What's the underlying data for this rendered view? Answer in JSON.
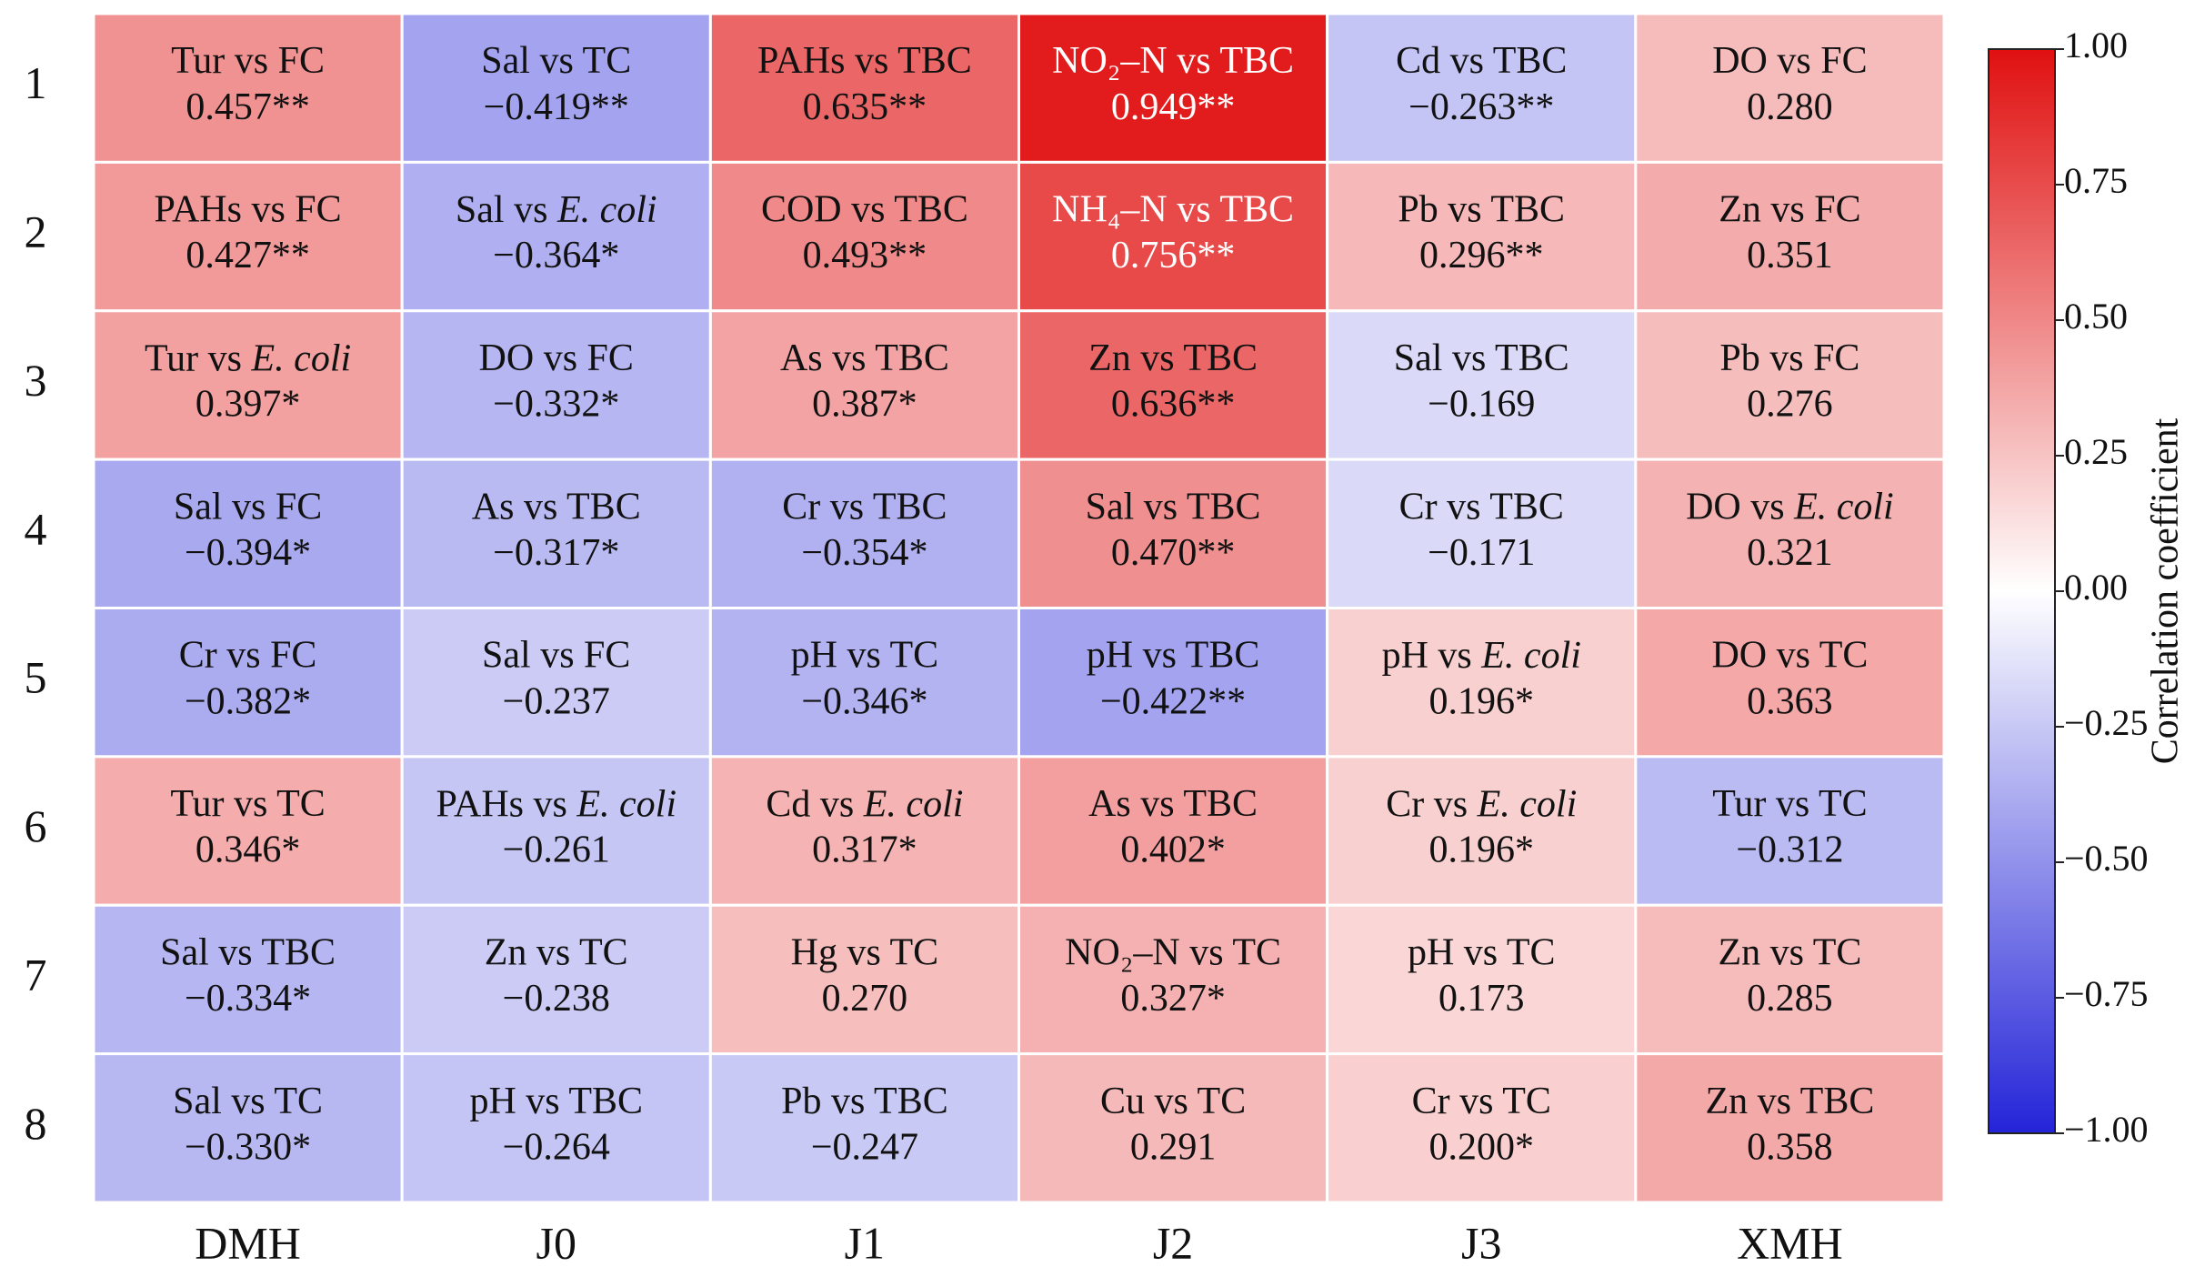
{
  "chart_data": {
    "type": "heatmap",
    "x": [
      "DMH",
      "J0",
      "J1",
      "J2",
      "J3",
      "XMH"
    ],
    "y": [
      "1",
      "2",
      "3",
      "4",
      "5",
      "6",
      "7",
      "8"
    ],
    "cell_labels": [
      [
        "Tur vs FC",
        "Sal vs TC",
        "PAHs vs TBC",
        "NO₂–N vs TBC",
        "Cd vs TBC",
        "DO vs FC"
      ],
      [
        "PAHs vs FC",
        "Sal vs E. coli",
        "COD vs TBC",
        "NH₄–N vs TBC",
        "Pb vs TBC",
        "Zn vs FC"
      ],
      [
        "Tur vs E. coli",
        "DO vs FC",
        "As vs TBC",
        "Zn vs TBC",
        "Sal vs TBC",
        "Pb vs FC"
      ],
      [
        "Sal vs FC",
        "As vs TBC",
        "Cr vs TBC",
        "Sal vs TBC",
        "Cr vs TBC",
        "DO vs E. coli"
      ],
      [
        "Cr vs FC",
        "Sal vs FC",
        "pH vs TC",
        "pH vs TBC",
        "pH vs E. coli",
        "DO vs TC"
      ],
      [
        "Tur vs TC",
        "PAHs vs E. coli",
        "Cd vs E. coli",
        "As vs TBC",
        "Cr vs E. coli",
        "Tur vs TC"
      ],
      [
        "Sal vs TBC",
        "Zn vs TC",
        "Hg vs TC",
        "NO₂–N vs TC",
        "pH vs TC",
        "Zn vs TC"
      ],
      [
        "Sal vs TC",
        "pH vs TBC",
        "Pb vs TBC",
        "Cu vs TC",
        "Cr vs TC",
        "Zn vs TBC"
      ]
    ],
    "values": [
      [
        0.457,
        -0.419,
        0.635,
        0.949,
        -0.263,
        0.28
      ],
      [
        0.427,
        -0.364,
        0.493,
        0.756,
        0.296,
        0.351
      ],
      [
        0.397,
        -0.332,
        0.387,
        0.636,
        -0.169,
        0.276
      ],
      [
        -0.394,
        -0.317,
        -0.354,
        0.47,
        -0.171,
        0.321
      ],
      [
        -0.382,
        -0.237,
        -0.346,
        -0.422,
        0.196,
        0.363
      ],
      [
        0.346,
        -0.261,
        0.317,
        0.402,
        0.196,
        -0.312
      ],
      [
        -0.334,
        -0.238,
        0.27,
        0.327,
        0.173,
        0.285
      ],
      [
        -0.33,
        -0.264,
        -0.247,
        0.291,
        0.2,
        0.358
      ]
    ],
    "value_labels": [
      [
        "0.457**",
        "−0.419**",
        "0.635**",
        "0.949**",
        "−0.263**",
        "0.280"
      ],
      [
        "0.427**",
        "−0.364*",
        "0.493**",
        "0.756**",
        "0.296**",
        "0.351"
      ],
      [
        "0.397*",
        "−0.332*",
        "0.387*",
        "0.636**",
        "−0.169",
        "0.276"
      ],
      [
        "−0.394*",
        "−0.317*",
        "−0.354*",
        "0.470**",
        "−0.171",
        "0.321"
      ],
      [
        "−0.382*",
        "−0.237",
        "−0.346*",
        "−0.422**",
        "0.196*",
        "0.363"
      ],
      [
        "0.346*",
        "−0.261",
        "0.317*",
        "0.402*",
        "0.196*",
        "−0.312"
      ],
      [
        "−0.334*",
        "−0.238",
        "0.270",
        "0.327*",
        "0.173",
        "0.285"
      ],
      [
        "−0.330*",
        "−0.264",
        "−0.247",
        "0.291",
        "0.200*",
        "0.358"
      ]
    ],
    "colorbar_label": "Correlation coefficient",
    "clim": [
      -1,
      1
    ],
    "colormap": [
      "#2424d8",
      "#ffffff",
      "#e01010"
    ],
    "cticks": [
      {
        "value": 1,
        "label": "1.00"
      },
      {
        "value": 0.75,
        "label": "0.75"
      },
      {
        "value": 0.5,
        "label": "0.50"
      },
      {
        "value": 0.25,
        "label": "0.25"
      },
      {
        "value": 0,
        "label": "0.00"
      },
      {
        "value": -0.25,
        "label": "−0.25"
      },
      {
        "value": -0.5,
        "label": "−0.50"
      },
      {
        "value": -0.75,
        "label": "−0.75"
      },
      {
        "value": -1,
        "label": "−1.00"
      }
    ]
  }
}
